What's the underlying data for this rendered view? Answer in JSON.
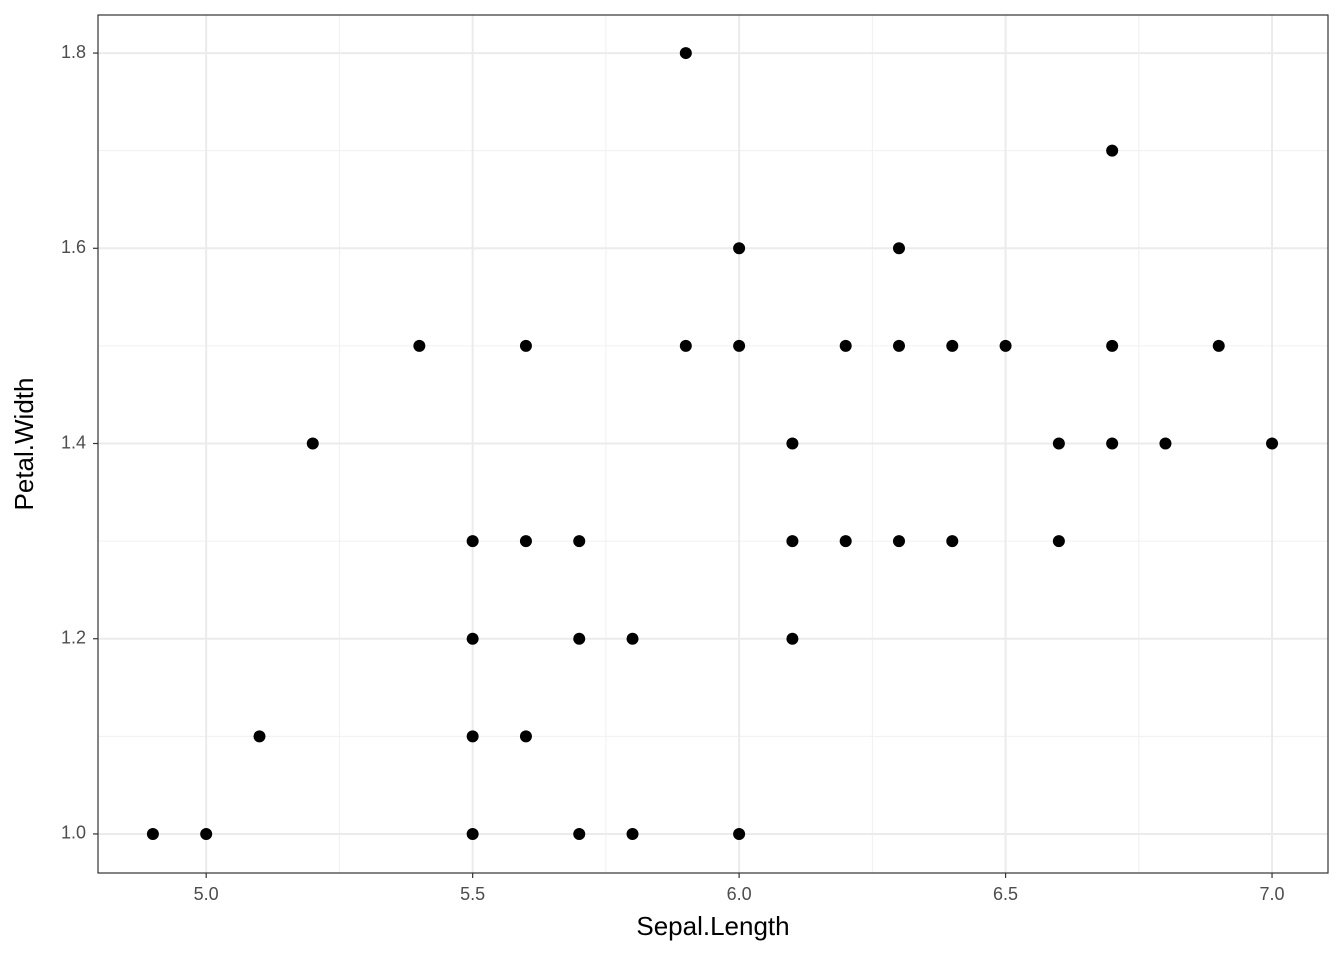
{
  "chart_data": {
    "type": "scatter",
    "x_label": "Sepal.Length",
    "y_label": "Petal.Width",
    "x": [
      5.9,
      6.7,
      6.0,
      6.3,
      5.4,
      5.6,
      5.9,
      6.0,
      6.2,
      6.3,
      6.4,
      6.5,
      6.7,
      6.9,
      5.2,
      6.1,
      6.6,
      6.7,
      6.8,
      7.0,
      5.5,
      5.6,
      5.7,
      6.1,
      6.2,
      6.3,
      6.4,
      6.6,
      5.5,
      5.7,
      5.8,
      6.1,
      5.1,
      5.5,
      5.6,
      4.9,
      5.0,
      5.5,
      5.7,
      5.8,
      6.0
    ],
    "y": [
      1.8,
      1.7,
      1.6,
      1.6,
      1.5,
      1.5,
      1.5,
      1.5,
      1.5,
      1.5,
      1.5,
      1.5,
      1.5,
      1.5,
      1.4,
      1.4,
      1.4,
      1.4,
      1.4,
      1.4,
      1.3,
      1.3,
      1.3,
      1.3,
      1.3,
      1.3,
      1.3,
      1.3,
      1.2,
      1.2,
      1.2,
      1.2,
      1.1,
      1.1,
      1.1,
      1.0,
      1.0,
      1.0,
      1.0,
      1.0,
      1.0
    ],
    "color": "#000000",
    "xlim": [
      4.797,
      7.105
    ],
    "ylim": [
      0.96,
      1.839
    ],
    "xticks": [
      {
        "value": 5,
        "label": "5.0"
      },
      5.5,
      {
        "value": 6,
        "label": "6.0"
      },
      6.5,
      {
        "value": 7,
        "label": "7.0"
      }
    ],
    "yticks": [
      {
        "value": 1,
        "label": "1.0"
      },
      1.2,
      1.4,
      1.6,
      1.8
    ],
    "grid": true
  }
}
